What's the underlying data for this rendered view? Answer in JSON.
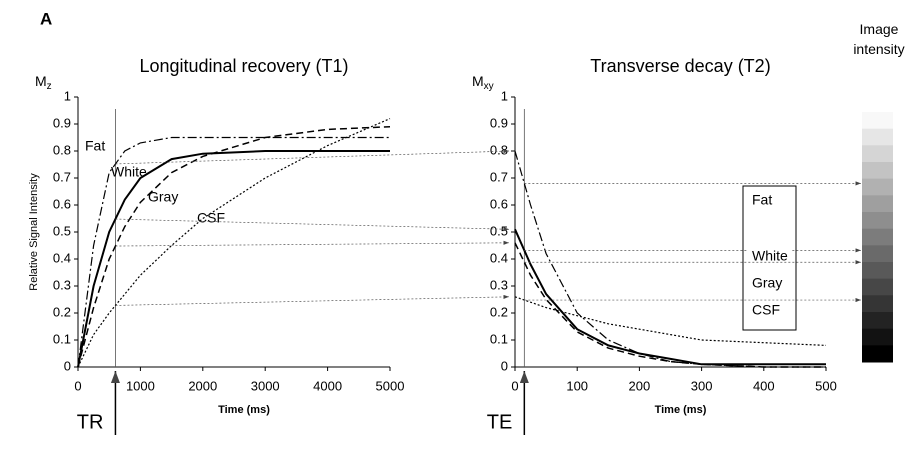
{
  "panel_label": "A",
  "intensity_scale": {
    "label": "Image intensity"
  },
  "chart_data": [
    {
      "type": "line",
      "title": "Longitudinal recovery (T1)",
      "ylabel": "Relative Signal Intensity",
      "xlabel": "Time (ms)",
      "axis_symbol": {
        "symbol": "M",
        "subscript": "z"
      },
      "marker": {
        "label": "TR",
        "x": 600
      },
      "x": [
        0,
        250,
        500,
        750,
        1000,
        1500,
        2000,
        3000,
        4000,
        5000
      ],
      "xlim": [
        0,
        5000
      ],
      "xticks": [
        0,
        1000,
        2000,
        3000,
        4000,
        5000
      ],
      "ylim": [
        0,
        1
      ],
      "yticks": [
        0,
        0.1,
        0.2,
        0.3,
        0.4,
        0.5,
        0.6,
        0.7,
        0.8,
        0.9,
        1
      ],
      "series": [
        {
          "name": "Fat",
          "color": "#000000",
          "linestyle": "dashdot",
          "values": [
            0,
            0.45,
            0.72,
            0.8,
            0.83,
            0.85,
            0.85,
            0.85,
            0.85,
            0.85
          ]
        },
        {
          "name": "White",
          "color": "#000000",
          "linestyle": "solid",
          "values": [
            0,
            0.3,
            0.5,
            0.62,
            0.7,
            0.77,
            0.79,
            0.8,
            0.8,
            0.8
          ]
        },
        {
          "name": "Gray",
          "color": "#000000",
          "linestyle": "dashed",
          "values": [
            0,
            0.22,
            0.4,
            0.52,
            0.61,
            0.72,
            0.78,
            0.85,
            0.88,
            0.89
          ]
        },
        {
          "name": "CSF",
          "color": "#000000",
          "linestyle": "dotted",
          "values": [
            0,
            0.12,
            0.2,
            0.27,
            0.34,
            0.45,
            0.55,
            0.7,
            0.82,
            0.92
          ]
        }
      ]
    },
    {
      "type": "line",
      "title": "Transverse decay (T2)",
      "xlabel": "Time (ms)",
      "axis_symbol": {
        "symbol": "M",
        "subscript": "xy"
      },
      "marker": {
        "label": "TE",
        "x": 15
      },
      "x": [
        0,
        25,
        50,
        100,
        150,
        200,
        250,
        300,
        400,
        500
      ],
      "xlim": [
        0,
        500
      ],
      "xticks": [
        0,
        100,
        200,
        300,
        400,
        500
      ],
      "ylim": [
        0,
        1
      ],
      "yticks": [
        0,
        0.1,
        0.2,
        0.3,
        0.4,
        0.5,
        0.6,
        0.7,
        0.8,
        0.9,
        1
      ],
      "series": [
        {
          "name": "Fat",
          "color": "#000000",
          "linestyle": "dashdot",
          "values": [
            0.8,
            0.6,
            0.42,
            0.2,
            0.1,
            0.05,
            0.02,
            0.01,
            0,
            0
          ]
        },
        {
          "name": "White",
          "color": "#000000",
          "linestyle": "solid",
          "values": [
            0.51,
            0.38,
            0.27,
            0.14,
            0.08,
            0.05,
            0.03,
            0.01,
            0.01,
            0.01
          ]
        },
        {
          "name": "Gray",
          "color": "#000000",
          "linestyle": "dashed",
          "values": [
            0.46,
            0.34,
            0.25,
            0.13,
            0.07,
            0.04,
            0.02,
            0.01,
            0,
            0
          ]
        },
        {
          "name": "CSF",
          "color": "#000000",
          "linestyle": "dotted",
          "values": [
            0.26,
            0.24,
            0.22,
            0.19,
            0.16,
            0.14,
            0.12,
            0.1,
            0.09,
            0.08
          ]
        }
      ]
    }
  ]
}
